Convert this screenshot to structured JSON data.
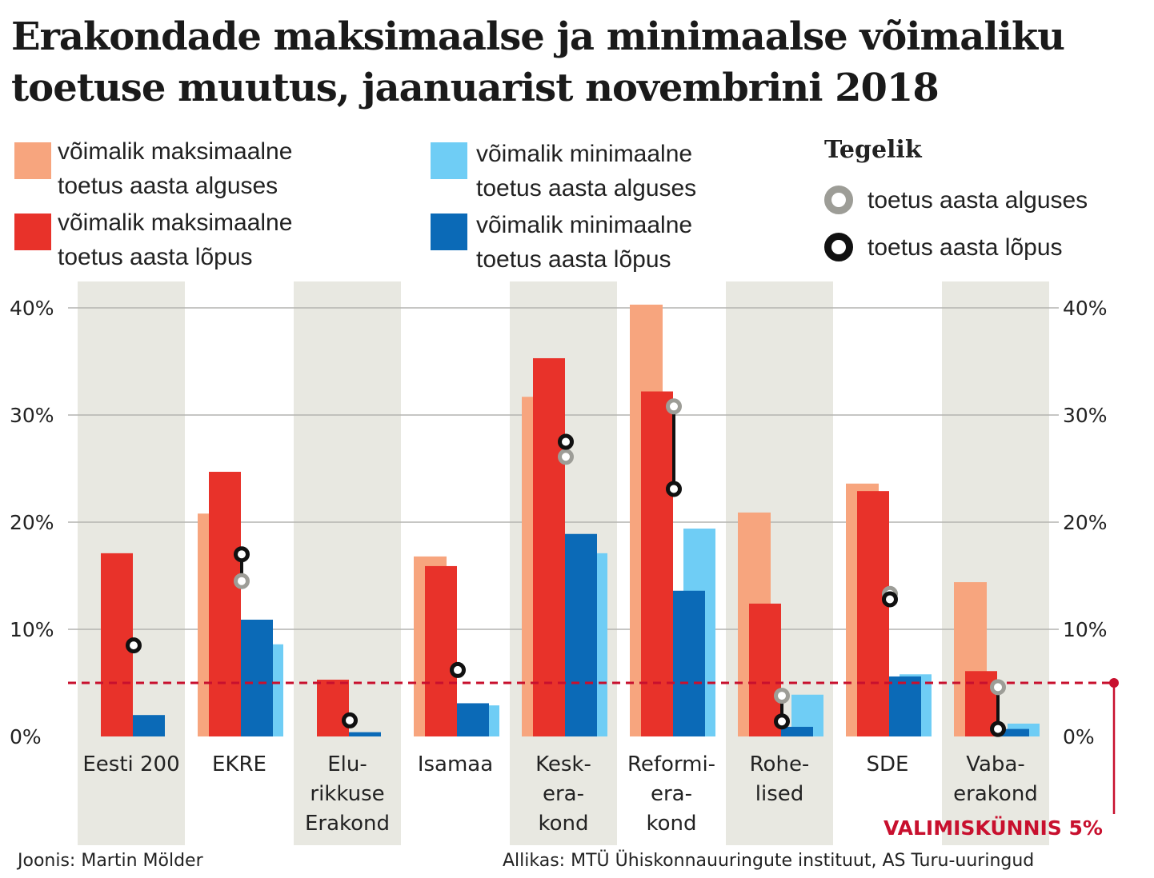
{
  "title": "Erakondade maksimaalse ja minimaalse võimaliku toetuse muutus, jaanuarist novembrini 2018",
  "legend": {
    "max_start": {
      "line1": "võimalik maksimaalne",
      "line2": "toetus aasta alguses",
      "color": "#f7a57e"
    },
    "max_end": {
      "line1": "võimalik maksimaalne",
      "line2": "toetus aasta lõpus",
      "color": "#e8322a"
    },
    "min_start": {
      "line1": "võimalik minimaalne",
      "line2": "toetus aasta alguses",
      "color": "#6fcdf5"
    },
    "min_end": {
      "line1": "võimalik minimaalne",
      "line2": "toetus aasta lõpus",
      "color": "#0b6ab7"
    },
    "actual_heading": "Tegelik",
    "actual_start": {
      "label": "toetus aasta alguses",
      "color": "#9d9d97"
    },
    "actual_end": {
      "label": "toetus aasta lõpus",
      "color": "#111111"
    }
  },
  "chart_data": {
    "type": "bar",
    "ylim": [
      0,
      40
    ],
    "yticks": [
      0,
      10,
      20,
      30,
      40
    ],
    "ytick_labels": [
      "0%",
      "10%",
      "20%",
      "30%",
      "40%"
    ],
    "categories": [
      {
        "lines": [
          "Eesti 200"
        ]
      },
      {
        "lines": [
          "EKRE"
        ]
      },
      {
        "lines": [
          "Elu-",
          "rikkuse",
          "Erakond"
        ]
      },
      {
        "lines": [
          "Isamaa"
        ]
      },
      {
        "lines": [
          "Kesk-",
          "era-",
          "kond"
        ]
      },
      {
        "lines": [
          "Reformi-",
          "era-",
          "kond"
        ]
      },
      {
        "lines": [
          "Rohe-",
          "lised"
        ]
      },
      {
        "lines": [
          "SDE"
        ]
      },
      {
        "lines": [
          "Vaba-",
          "erakond"
        ]
      }
    ],
    "series": [
      {
        "name": "võimalik maksimaalne toetus aasta alguses",
        "values": [
          null,
          20.8,
          null,
          16.8,
          31.7,
          40.3,
          20.9,
          23.6,
          14.4
        ]
      },
      {
        "name": "võimalik maksimaalne toetus aasta lõpus",
        "values": [
          17.1,
          24.7,
          5.3,
          15.9,
          35.3,
          32.2,
          12.4,
          22.9,
          6.1
        ]
      },
      {
        "name": "võimalik minimaalne toetus aasta alguses",
        "values": [
          null,
          8.6,
          null,
          2.9,
          17.1,
          19.4,
          3.9,
          5.8,
          1.2
        ]
      },
      {
        "name": "võimalik minimaalne toetus aasta lõpus",
        "values": [
          2.0,
          10.9,
          0.4,
          3.1,
          18.9,
          13.6,
          0.9,
          5.6,
          0.7
        ]
      }
    ],
    "actual_start": [
      null,
      14.5,
      null,
      null,
      26.1,
      30.8,
      3.8,
      13.3,
      4.6
    ],
    "actual_end": [
      8.5,
      17.0,
      1.5,
      6.2,
      27.5,
      23.1,
      1.4,
      12.8,
      0.7
    ],
    "threshold": {
      "value": 5,
      "label": "VALIMISKÜNNIS 5%"
    }
  },
  "footer": {
    "author": "Joonis: Martin Mölder",
    "source": "Allikas: MTÜ Ühiskonnauuringute instituut, AS Turu-uuringud"
  }
}
